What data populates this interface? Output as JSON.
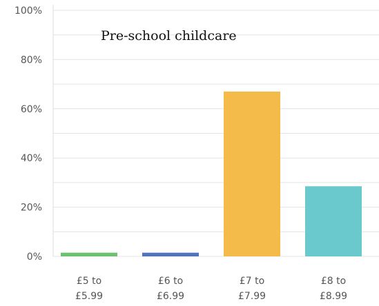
{
  "chart_data": {
    "type": "bar",
    "title": "Pre-school childcare",
    "categories": [
      [
        "£5 to",
        "£5.99"
      ],
      [
        "£6 to",
        "£6.99"
      ],
      [
        "£7 to",
        "£7.99"
      ],
      [
        "£8 to",
        "£8.99"
      ]
    ],
    "values": [
      1.5,
      1.5,
      67,
      28.5
    ],
    "bar_colors": [
      "#6cc26f",
      "#4f75b8",
      "#f4bb4a",
      "#6ac9cc"
    ],
    "ylim": [
      0,
      100
    ],
    "yticks": [
      0,
      20,
      40,
      60,
      80,
      100
    ],
    "ytick_labels": [
      "0%",
      "20%",
      "40%",
      "60%",
      "80%",
      "100%"
    ],
    "xlabel": "",
    "ylabel": "",
    "grid": true,
    "legend": "none"
  }
}
